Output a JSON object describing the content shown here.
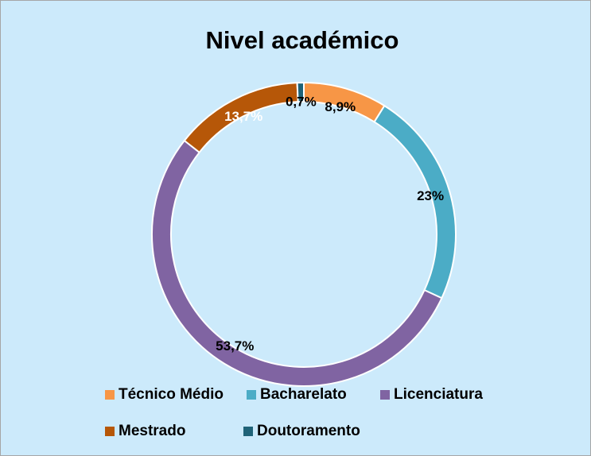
{
  "chart_data": {
    "type": "donut",
    "title": "Nivel académico",
    "categories": [
      "Técnico Médio",
      "Bacharelato",
      "Licenciatura",
      "Mestrado",
      "Doutoramento"
    ],
    "values": [
      8.9,
      23,
      53.7,
      13.7,
      0.7
    ],
    "value_labels": [
      "8,9%",
      "23%",
      "53,7%",
      "13,7%",
      "0,7%"
    ],
    "colors": [
      "#f79646",
      "#4bacc6",
      "#8064a2",
      "#b65708",
      "#1f6378"
    ],
    "label_colors": [
      "#000000",
      "#000000",
      "#000000",
      "#ffffff",
      "#000000"
    ],
    "legend": "bottom"
  }
}
